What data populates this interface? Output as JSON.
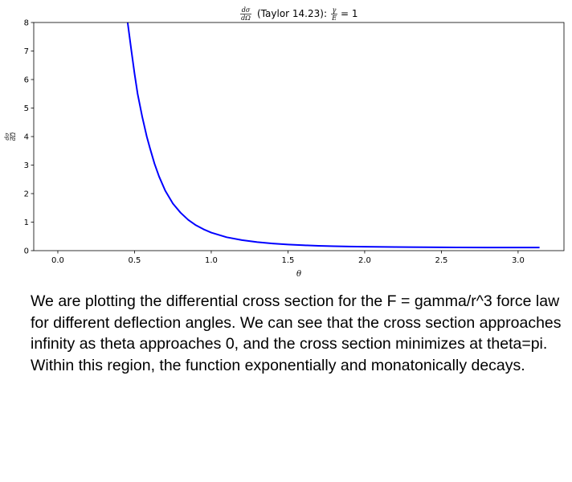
{
  "chart_data": {
    "type": "line",
    "title": {
      "prefix_num": "dσ",
      "prefix_den": "dΩ",
      "middle": "(Taylor 14.23):",
      "ratio_num": "γ",
      "ratio_den": "E",
      "suffix": "= 1"
    },
    "xlabel": "θ",
    "ylabel": {
      "num": "dσ",
      "den": "dΩ"
    },
    "xlim": [
      -0.157,
      3.299
    ],
    "ylim": [
      0,
      8
    ],
    "x_ticks": [
      "0.0",
      "0.5",
      "1.0",
      "1.5",
      "2.0",
      "2.5",
      "3.0"
    ],
    "y_ticks": [
      "0",
      "1",
      "2",
      "3",
      "4",
      "5",
      "6",
      "7",
      "8"
    ],
    "grid": false,
    "series": [
      {
        "color": "#0000ff",
        "x": [
          0.455,
          0.48,
          0.5,
          0.52,
          0.55,
          0.58,
          0.6,
          0.63,
          0.66,
          0.7,
          0.75,
          0.8,
          0.85,
          0.9,
          0.95,
          1.0,
          1.1,
          1.2,
          1.3,
          1.4,
          1.5,
          1.6,
          1.7,
          1.8,
          1.9,
          2.0,
          2.2,
          2.4,
          2.6,
          2.8,
          3.0,
          3.14
        ],
        "y": [
          8.0,
          7.0,
          6.2,
          5.5,
          4.7,
          4.0,
          3.6,
          3.05,
          2.6,
          2.1,
          1.65,
          1.33,
          1.08,
          0.89,
          0.75,
          0.63,
          0.47,
          0.37,
          0.3,
          0.25,
          0.215,
          0.19,
          0.17,
          0.155,
          0.145,
          0.137,
          0.126,
          0.119,
          0.114,
          0.111,
          0.109,
          0.109
        ]
      }
    ]
  },
  "caption": "We are plotting the differential cross section for the F = gamma/r^3 force law for different deflection angles. We can see that the cross section approaches infinity as theta approaches 0, and the cross section minimizes at theta=pi. Within this region, the function exponentially and monatonically decays."
}
